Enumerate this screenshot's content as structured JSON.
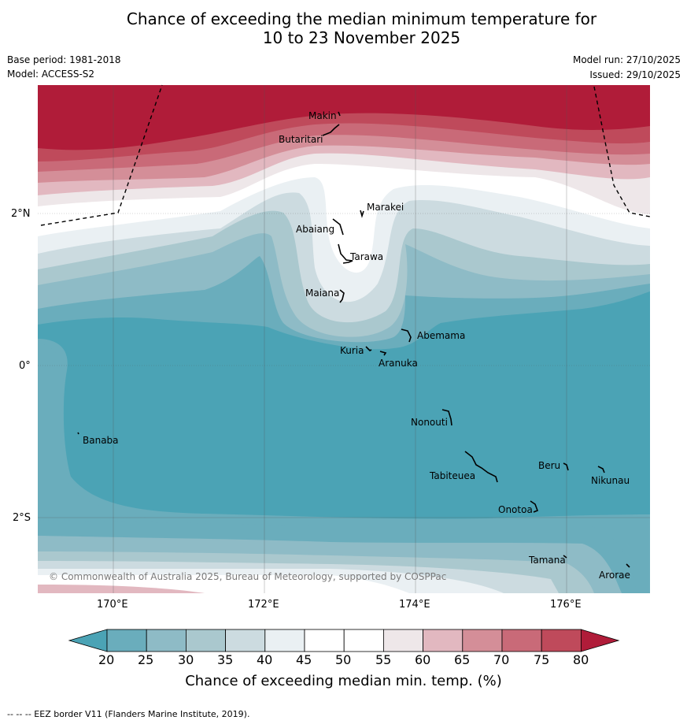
{
  "title": {
    "line1": "Chance of exceeding the median minimum temperature for",
    "line2": "10 to 23 November 2025"
  },
  "header": {
    "base_period": "Base period: 1981-2018",
    "model": "Model: ACCESS-S2",
    "model_run": "Model run: 27/10/2025",
    "issued": "Issued: 29/10/2025"
  },
  "map": {
    "lat_labels": [
      "2°N",
      "0°",
      "2°S"
    ],
    "lon_labels": [
      "170°E",
      "172°E",
      "174°E",
      "176°E"
    ],
    "copyright": "© Commonwealth of Australia 2025, Bureau of Meteorology, supported by COSPPac",
    "places": [
      "Makin",
      "Butaritari",
      "Marakei",
      "Abaiang",
      "Tarawa",
      "Maiana",
      "Abemama",
      "Kuria",
      "Aranuka",
      "Nonouti",
      "Banaba",
      "Beru",
      "Nikunau",
      "Tabiteuea",
      "Onotoa",
      "Tamana",
      "Arorae"
    ],
    "colors": {
      "c20": "#4ba3b5",
      "c25": "#6aadbc",
      "c30": "#8ebbc6",
      "c35": "#aac8ce",
      "c40": "#ccdbe0",
      "c45": "#eaf0f3",
      "c50": "#ffffff",
      "c55": "#eee7e9",
      "c60": "#e2b8c0",
      "c65": "#d48e98",
      "c70": "#c96a78",
      "c75": "#bf4a5b",
      "c80": "#b01c39"
    }
  },
  "colorbar": {
    "ticks": [
      "20",
      "25",
      "30",
      "35",
      "40",
      "45",
      "50",
      "55",
      "60",
      "65",
      "70",
      "75",
      "80"
    ],
    "title": "Chance of exceeding median min. temp. (%)"
  },
  "footer": "--  --  -- EEZ border V11 (Flanders Marine Institute, 2019)."
}
